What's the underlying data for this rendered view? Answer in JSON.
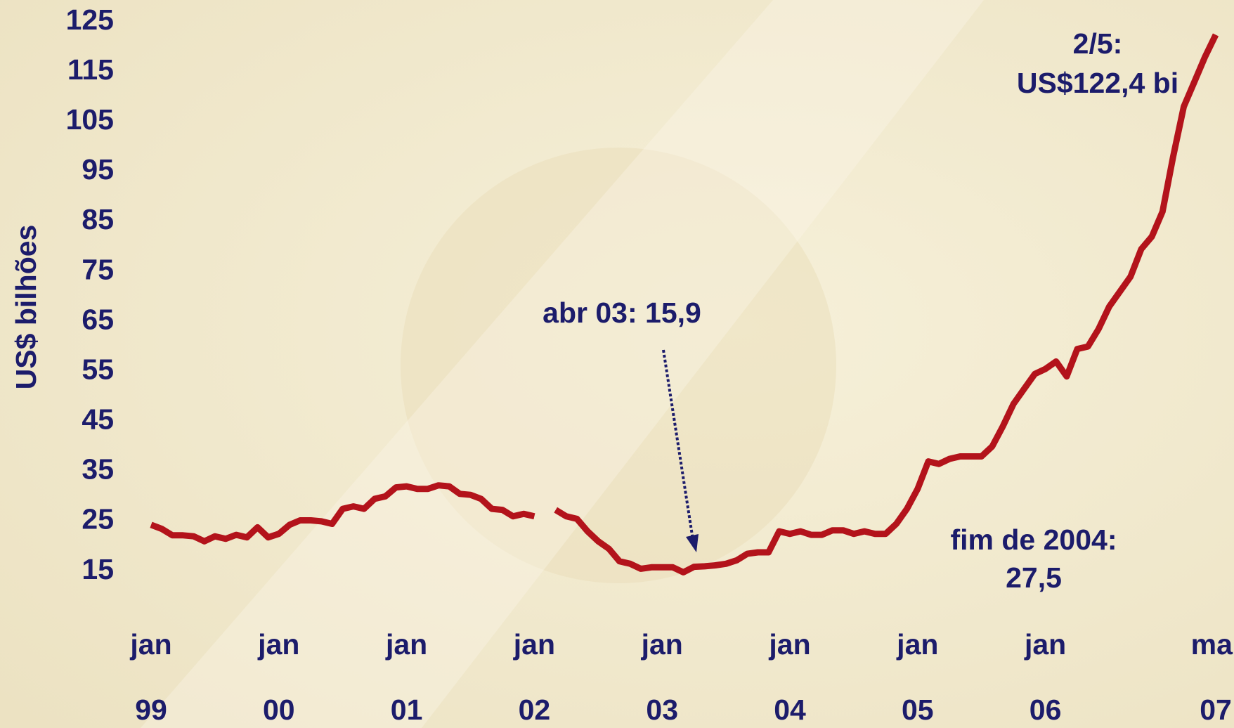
{
  "chart_data": {
    "type": "line",
    "y_label": "US$ bilhões",
    "x": [
      0,
      1,
      2,
      3,
      4,
      5,
      6,
      7,
      8,
      9,
      10,
      11,
      12,
      13,
      14,
      15,
      16,
      17,
      18,
      19,
      20,
      21,
      22,
      23,
      24,
      25,
      26,
      27,
      28,
      29,
      30,
      31,
      32,
      33,
      34,
      35,
      36,
      37,
      38,
      39,
      40,
      41,
      42,
      43,
      44,
      45,
      46,
      47,
      48,
      49,
      50,
      51,
      52,
      53,
      54,
      55,
      56,
      57,
      58,
      59,
      60,
      61,
      62,
      63,
      64,
      65,
      66,
      67,
      68,
      69,
      70,
      71,
      72,
      73,
      74,
      75,
      76,
      77,
      78,
      79,
      80,
      81,
      82,
      83,
      84,
      85,
      86,
      87,
      88,
      89,
      90,
      91,
      92,
      93,
      94,
      95,
      96,
      97,
      98,
      99,
      100
    ],
    "series": [
      {
        "color": "#b3131b",
        "values": [
          24.3,
          23.5,
          22.2,
          22.2,
          22.0,
          21.0,
          22.0,
          21.5,
          22.3,
          21.8,
          23.8,
          21.8,
          22.5,
          24.3,
          25.2,
          25.2,
          25.0,
          24.5,
          27.5,
          28.0,
          27.5,
          29.5,
          30.0,
          31.8,
          32.0,
          31.5,
          31.5,
          32.2,
          32.0,
          30.5,
          30.3,
          29.5,
          27.5,
          27.3,
          26.0,
          26.5,
          26.0,
          null,
          27.3,
          26.0,
          25.5,
          23.0,
          21.0,
          19.5,
          17.0,
          16.5,
          15.5,
          15.8,
          15.8,
          15.8,
          14.8,
          15.9,
          16.0,
          16.2,
          16.5,
          17.2,
          18.5,
          18.8,
          18.8,
          23.0,
          22.5,
          23.0,
          22.3,
          22.3,
          23.2,
          23.2,
          22.5,
          23.0,
          22.5,
          22.5,
          24.5,
          27.5,
          31.5,
          37.0,
          36.5,
          37.5,
          38.0,
          38.0,
          38.0,
          40.0,
          44.0,
          48.5,
          51.5,
          54.5,
          55.5,
          57.0,
          54.0,
          59.5,
          60.0,
          63.5,
          68.0,
          71.0,
          74.0,
          79.5,
          82.0,
          87.0,
          98.0,
          108.0,
          113.0,
          118.0,
          122.4
        ]
      }
    ],
    "xlim": [
      0,
      100
    ],
    "xticks": [
      {
        "value": 0,
        "label": [
          "jan",
          "99"
        ]
      },
      {
        "value": 12,
        "label": [
          "jan",
          "00"
        ]
      },
      {
        "value": 24,
        "label": [
          "jan",
          "01"
        ]
      },
      {
        "value": 36,
        "label": [
          "jan",
          "02"
        ]
      },
      {
        "value": 48,
        "label": [
          "jan",
          "03"
        ]
      },
      {
        "value": 60,
        "label": [
          "jan",
          "04"
        ]
      },
      {
        "value": 72,
        "label": [
          "jan",
          "05"
        ]
      },
      {
        "value": 84,
        "label": [
          "jan",
          "06"
        ]
      },
      {
        "value": 100,
        "label": [
          "mai",
          "07"
        ]
      }
    ],
    "ylim": [
      15,
      125
    ],
    "yticks": [
      15,
      25,
      35,
      45,
      55,
      65,
      75,
      85,
      95,
      105,
      115,
      125
    ],
    "grid": false,
    "annotations": [
      {
        "lines": [
          "2/5:",
          "US$122,4 bi"
        ]
      },
      {
        "lines": [
          "abr 03: 15,9"
        ],
        "arrow": true
      },
      {
        "lines": [
          "fim de 2004:",
          "27,5"
        ]
      }
    ]
  }
}
